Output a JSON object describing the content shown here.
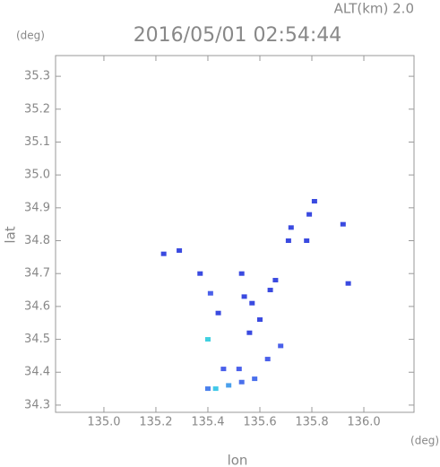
{
  "chart_data": {
    "type": "scatter",
    "title": "2016/05/01 02:54:44",
    "altitude_label": "ALT(km) 2.0",
    "y_unit": "(deg)",
    "x_unit": "(deg)",
    "x_label": "lon",
    "y_label": "lat",
    "xlim": [
      134.814,
      136.193
    ],
    "ylim": [
      34.278,
      35.363
    ],
    "xticks": [
      {
        "value": 135,
        "label": "135.0"
      },
      135.2,
      135.4,
      135.6,
      135.8,
      {
        "value": 136,
        "label": "136.0"
      }
    ],
    "yticks": [
      35.3,
      35.2,
      35.1,
      {
        "value": 35,
        "label": "35.0"
      },
      34.9,
      34.8,
      34.7,
      34.6,
      34.5,
      34.4,
      34.3
    ],
    "x": [
      135.23,
      135.29,
      135.37,
      135.53,
      135.41,
      135.54,
      135.57,
      135.6,
      135.56,
      135.44,
      135.64,
      135.66,
      135.4,
      135.71,
      135.72,
      135.78,
      135.79,
      135.81,
      135.92,
      135.94,
      135.68,
      135.63,
      135.52,
      135.46,
      135.58,
      135.53,
      135.48,
      135.43,
      135.4
    ],
    "values": [
      34.76,
      34.77,
      34.7,
      34.7,
      34.64,
      34.63,
      34.61,
      34.56,
      34.52,
      34.58,
      34.65,
      34.68,
      34.5,
      34.8,
      34.84,
      34.8,
      34.88,
      34.92,
      34.85,
      34.67,
      34.48,
      34.44,
      34.41,
      34.41,
      34.38,
      34.37,
      34.36,
      34.35,
      34.35
    ],
    "colors": [
      "#3a4ae0",
      "#3a4ae0",
      "#3a4ae0",
      "#3a4ae0",
      "#4a60ea",
      "#3a4ae0",
      "#3a4ae0",
      "#3a4ae0",
      "#3a4ae0",
      "#3a4ae0",
      "#3a4ae0",
      "#3a4ae0",
      "#40d0e0",
      "#3a4ae0",
      "#3a4ae0",
      "#3a4ae0",
      "#3a4ae0",
      "#3a4ae0",
      "#3a4ae0",
      "#3a4ae0",
      "#4a60ea",
      "#4a60ea",
      "#4a60ea",
      "#4a60ea",
      "#4a70ec",
      "#4a70ec",
      "#4aa0ec",
      "#40c8e8",
      "#4a80ec"
    ]
  }
}
